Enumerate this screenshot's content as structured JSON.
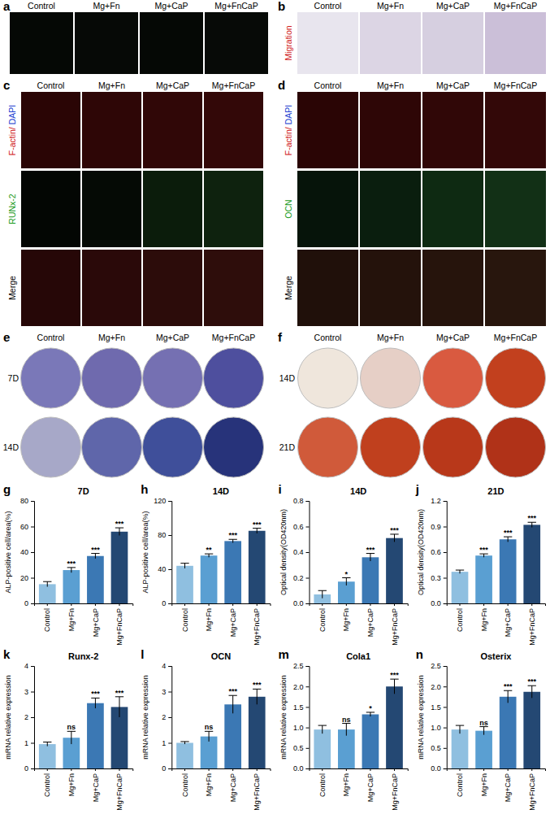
{
  "panels": [
    {
      "panel": "a",
      "columns": [
        "Control",
        "Mg+Fn",
        "Mg+CaP",
        "Mg+FnCaP"
      ]
    },
    {
      "panel": "b",
      "columns": [
        "Control",
        "Mg+Fn",
        "Mg+CaP",
        "Mg+FnCaP"
      ],
      "rows": [
        "Migration"
      ]
    },
    {
      "panel": "c",
      "columns": [
        "Control",
        "Mg+Fn",
        "Mg+CaP",
        "Mg+FnCaP"
      ],
      "rows": [
        "F-actin/ DAPI",
        "RUNx-2",
        "Merge"
      ]
    },
    {
      "panel": "d",
      "columns": [
        "Control",
        "Mg+Fn",
        "Mg+CaP",
        "Mg+FnCaP"
      ],
      "rows": [
        "F-actin/ DAPI",
        "OCN",
        "Merge"
      ]
    },
    {
      "panel": "e",
      "columns": [
        "Control",
        "Mg+Fn",
        "Mg+CaP",
        "Mg+FnCaP"
      ],
      "rows": [
        "7D",
        "14D"
      ]
    },
    {
      "panel": "f",
      "columns": [
        "Control",
        "Mg+Fn",
        "Mg+CaP",
        "Mg+FnCaP"
      ],
      "rows": [
        "14D",
        "21D"
      ]
    }
  ],
  "chart_data": [
    {
      "type": "bar",
      "panel": "g",
      "title": "7D",
      "ylabel": "ALP-positive cell/area(%)",
      "categories": [
        "Control",
        "Mg+Fn",
        "Mg+CaP",
        "Mg+FnCaP"
      ],
      "values": [
        15,
        26,
        37,
        56
      ],
      "errors": [
        2,
        2,
        2,
        3
      ],
      "significance": [
        null,
        "***",
        "***",
        "***"
      ],
      "colors": [
        "#8fbfe0",
        "#5a9fd2",
        "#3b78b4",
        "#244873"
      ],
      "ylim": [
        0,
        80
      ],
      "yticks": [
        0,
        20,
        40,
        60,
        80
      ]
    },
    {
      "type": "bar",
      "panel": "h",
      "title": "14D",
      "ylabel": "ALP-positive cell/area(%)",
      "categories": [
        "Control",
        "Mg+Fn",
        "Mg+CaP",
        "Mg+FnCaP"
      ],
      "values": [
        44,
        56,
        73,
        85
      ],
      "errors": [
        3,
        2,
        2,
        3
      ],
      "significance": [
        null,
        "**",
        "***",
        "***"
      ],
      "colors": [
        "#8fbfe0",
        "#5a9fd2",
        "#3b78b4",
        "#244873"
      ],
      "ylim": [
        0,
        120
      ],
      "yticks": [
        0,
        40,
        80,
        120
      ]
    },
    {
      "type": "bar",
      "panel": "i",
      "title": "14D",
      "ylabel": "Optical density(OD420nm)",
      "categories": [
        "Control",
        "Mg+Fn",
        "Mg+CaP",
        "Mg+FnCaP"
      ],
      "values": [
        0.07,
        0.17,
        0.36,
        0.51
      ],
      "errors": [
        0.03,
        0.03,
        0.03,
        0.03
      ],
      "significance": [
        null,
        "*",
        "***",
        "***"
      ],
      "colors": [
        "#8fbfe0",
        "#5a9fd2",
        "#3b78b4",
        "#244873"
      ],
      "ylim": [
        0,
        0.8
      ],
      "yticks": [
        {
          "value": 0,
          "label": "0.0"
        },
        0.2,
        0.4,
        0.6,
        0.8
      ]
    },
    {
      "type": "bar",
      "panel": "j",
      "title": "21D",
      "ylabel": "Optical density(OD420nm)",
      "categories": [
        "Control",
        "Mg+Fn",
        "Mg+CaP",
        "Mg+FnCaP"
      ],
      "values": [
        0.37,
        0.56,
        0.75,
        0.92
      ],
      "errors": [
        0.02,
        0.02,
        0.03,
        0.03
      ],
      "significance": [
        null,
        "***",
        "***",
        "***"
      ],
      "colors": [
        "#8fbfe0",
        "#5a9fd2",
        "#3b78b4",
        "#244873"
      ],
      "ylim": [
        0,
        1.2
      ],
      "yticks": [
        {
          "value": 0,
          "label": "0.0"
        },
        0.3,
        0.6,
        0.9,
        1.2
      ]
    },
    {
      "type": "bar",
      "panel": "k",
      "title": "Runx-2",
      "ylabel": "mRNA relative expression",
      "categories": [
        "Control",
        "Mg+Fn",
        "Mg+CaP",
        "Mg+FnCaP"
      ],
      "values": [
        0.95,
        1.2,
        2.55,
        2.4
      ],
      "errors": [
        0.08,
        0.25,
        0.2,
        0.4
      ],
      "significance": [
        null,
        "ns",
        "***",
        "***"
      ],
      "colors": [
        "#8fbfe0",
        "#5a9fd2",
        "#3b78b4",
        "#244873"
      ],
      "ylim": [
        0,
        4
      ],
      "yticks": [
        0,
        1,
        2,
        3,
        4
      ]
    },
    {
      "type": "bar",
      "panel": "l",
      "title": "OCN",
      "ylabel": "mRNA relative expression",
      "categories": [
        "Control",
        "Mg+Fn",
        "Mg+CaP",
        "Mg+FnCaP"
      ],
      "values": [
        1.0,
        1.25,
        2.5,
        2.8
      ],
      "errors": [
        0.05,
        0.2,
        0.35,
        0.3
      ],
      "significance": [
        null,
        "ns",
        "***",
        "***"
      ],
      "colors": [
        "#8fbfe0",
        "#5a9fd2",
        "#3b78b4",
        "#244873"
      ],
      "ylim": [
        0,
        4
      ],
      "yticks": [
        0,
        1,
        2,
        3,
        4
      ]
    },
    {
      "type": "bar",
      "panel": "m",
      "title": "Cola1",
      "ylabel": "mRNA relative expression",
      "categories": [
        "Control",
        "Mg+Fn",
        "Mg+CaP",
        "Mg+FnCaP"
      ],
      "values": [
        0.95,
        0.95,
        1.32,
        2.0
      ],
      "errors": [
        0.1,
        0.15,
        0.05,
        0.18
      ],
      "significance": [
        null,
        "ns",
        "*",
        "***"
      ],
      "colors": [
        "#8fbfe0",
        "#5a9fd2",
        "#3b78b4",
        "#244873"
      ],
      "ylim": [
        0,
        2.5
      ],
      "yticks": [
        {
          "value": 0,
          "label": "0.0"
        },
        0.5,
        {
          "value": 1,
          "label": "1.0"
        },
        1.5,
        {
          "value": 2,
          "label": "2.0"
        },
        2.5
      ]
    },
    {
      "type": "bar",
      "panel": "n",
      "title": "Osterix",
      "ylabel": "mRNA relative expression",
      "categories": [
        "Control",
        "Mg+Fn",
        "Mg+CaP",
        "Mg+FnCaP"
      ],
      "values": [
        0.95,
        0.92,
        1.75,
        1.87
      ],
      "errors": [
        0.1,
        0.1,
        0.15,
        0.15
      ],
      "significance": [
        null,
        "ns",
        "***",
        "***"
      ],
      "colors": [
        "#8fbfe0",
        "#5a9fd2",
        "#3b78b4",
        "#244873"
      ],
      "ylim": [
        0,
        2.5
      ],
      "yticks": [
        {
          "value": 0,
          "label": "0.0"
        },
        0.5,
        {
          "value": 1,
          "label": "1.0"
        },
        1.5,
        {
          "value": 2,
          "label": "2.0"
        },
        2.5
      ]
    }
  ]
}
